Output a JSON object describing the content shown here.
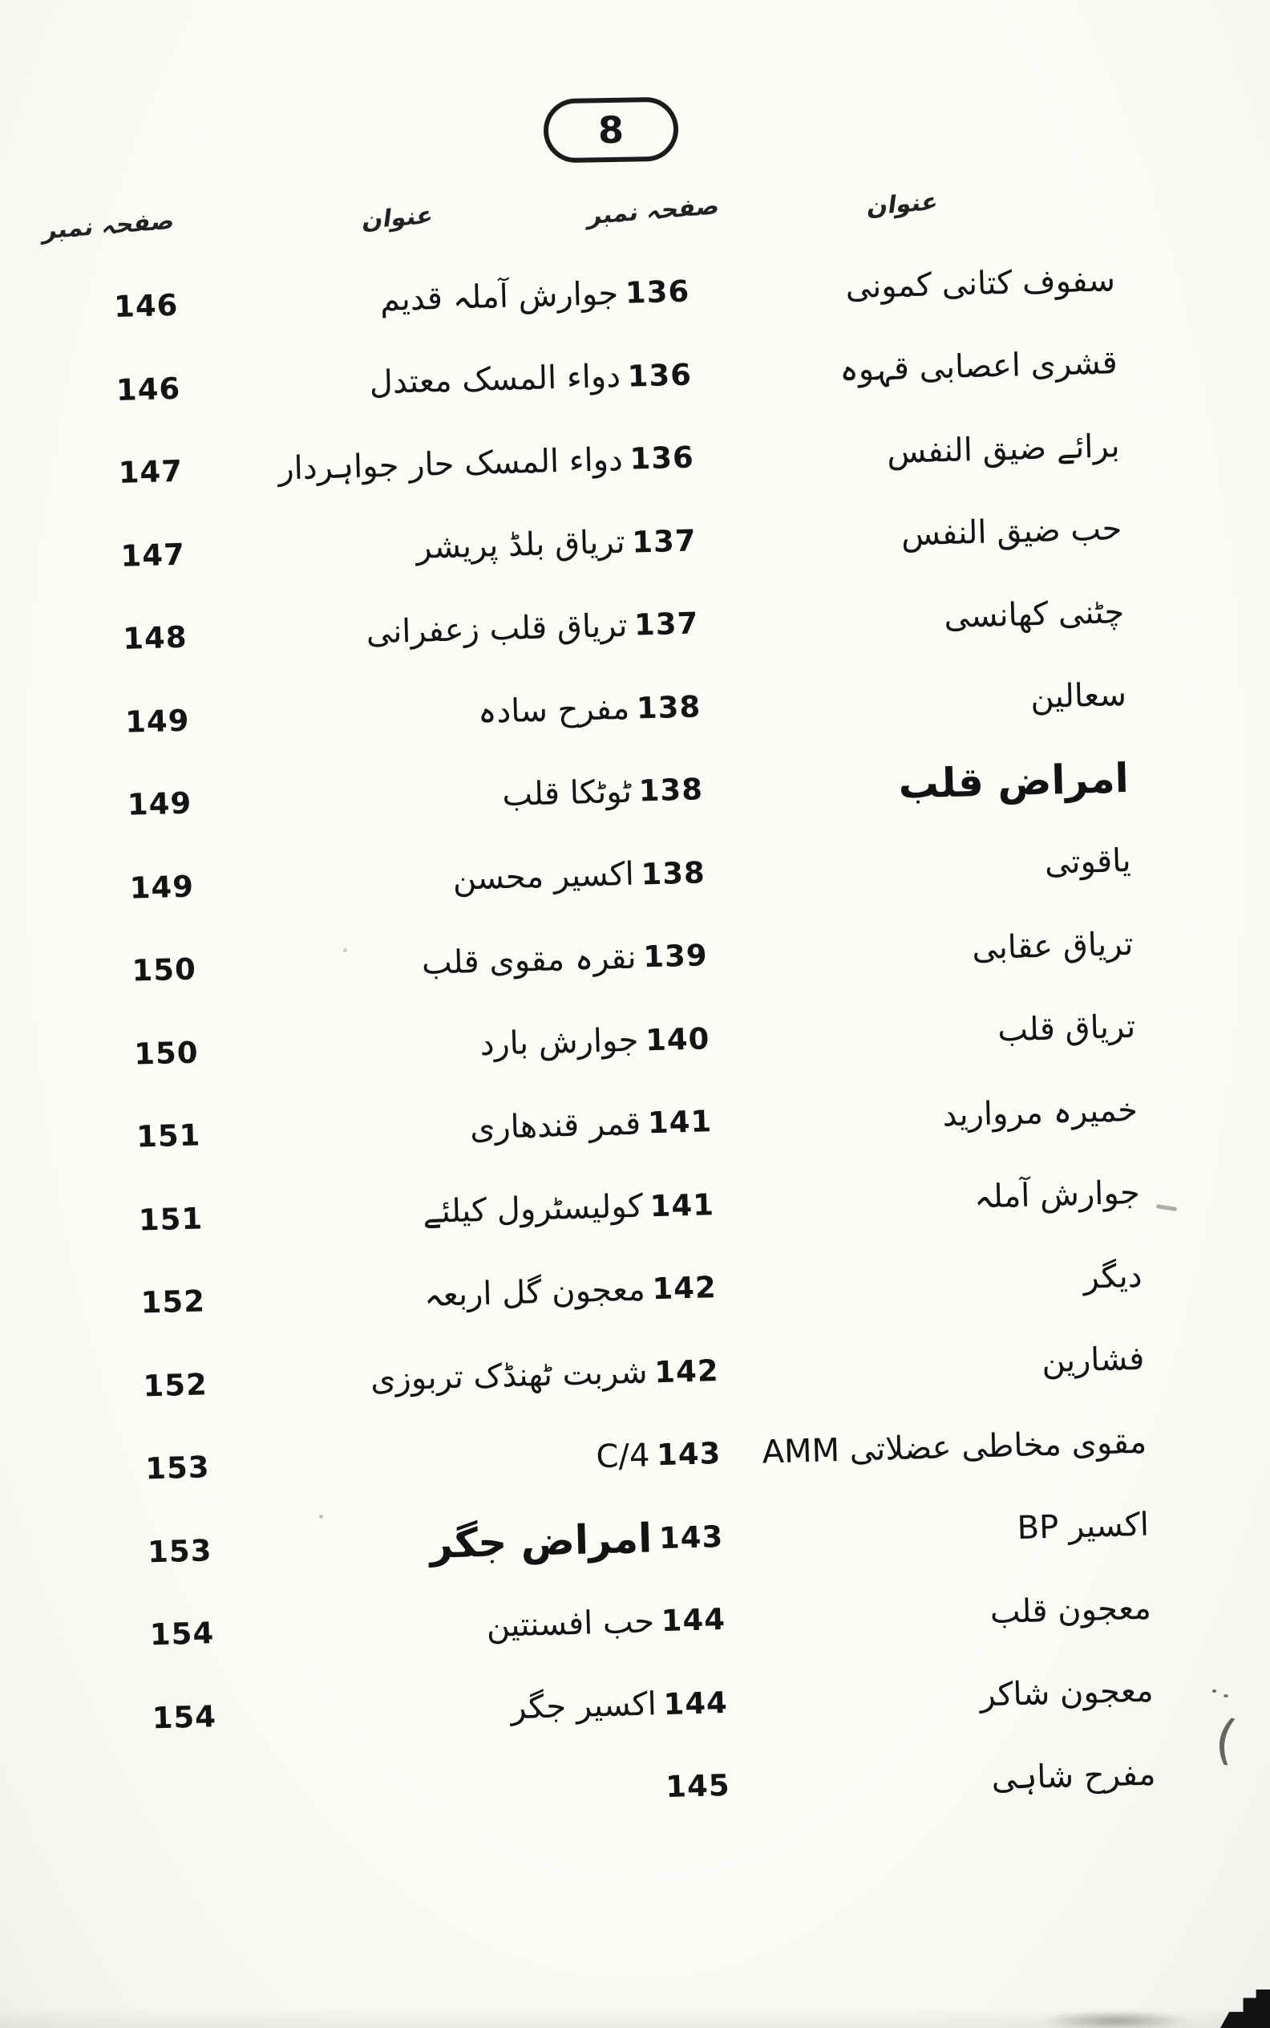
{
  "page_badge": "8",
  "headers": {
    "right_title_col": "عنوان",
    "right_page_col": "صفحہ نمبر",
    "left_title_col": "عنوان",
    "left_page_col": "صفحہ نمبر"
  },
  "rows": [
    {
      "right_title": "سفوف کتانی کمونی",
      "right_page": "136",
      "left_title": "جوارش آملہ قدیم",
      "left_page": "146"
    },
    {
      "right_title": "قشری اعصابی قہوہ",
      "right_page": "136",
      "left_title": "دواء المسک معتدل",
      "left_page": "146"
    },
    {
      "right_title": "برائے ضیق النفس",
      "right_page": "136",
      "left_title": "دواء المسک حار جواہردار",
      "left_page": "147"
    },
    {
      "right_title": "حب ضیق النفس",
      "right_page": "137",
      "left_title": "تریاق بلڈ پریشر",
      "left_page": "147"
    },
    {
      "right_title": "چٹنی کھانسی",
      "right_page": "137",
      "left_title": "تریاق قلب زعفرانی",
      "left_page": "148"
    },
    {
      "right_title": "سعالین",
      "right_page": "138",
      "left_title": "مفرح سادہ",
      "left_page": "149"
    },
    {
      "right_title": "امراض قلب",
      "right_page": "138",
      "left_title": "ٹوٹکا قلب",
      "left_page": "149",
      "right_bold": true
    },
    {
      "right_title": "یاقوتی",
      "right_page": "138",
      "left_title": "اکسیر محسن",
      "left_page": "149"
    },
    {
      "right_title": "تریاق عقابی",
      "right_page": "139",
      "left_title": "نقرہ مقوی قلب",
      "left_page": "150"
    },
    {
      "right_title": "تریاق قلب",
      "right_page": "140",
      "left_title": "جوارش بارد",
      "left_page": "150"
    },
    {
      "right_title": "خمیرہ مروارید",
      "right_page": "141",
      "left_title": "قمر قندھاری",
      "left_page": "151"
    },
    {
      "right_title": "جوارش آملہ",
      "right_page": "141",
      "left_title": "کولیسٹرول کیلئے",
      "left_page": "151"
    },
    {
      "right_title": "دیگر",
      "right_page": "142",
      "left_title": "معجون گل اربعہ",
      "left_page": "152"
    },
    {
      "right_title": "فشارین",
      "right_page": "142",
      "left_title": "شربت ٹھنڈک تربوزی",
      "left_page": "152"
    },
    {
      "right_title": "مقوی مخاطی عضلاتی AMM",
      "right_page": "143",
      "left_title": "C/4",
      "left_page": "153"
    },
    {
      "right_title": "اکسیر BP",
      "right_page": "143",
      "left_title": "امراض جگر",
      "left_page": "153",
      "left_bold": true
    },
    {
      "right_title": "معجون قلب",
      "right_page": "144",
      "left_title": "حب افسنتین",
      "left_page": "154"
    },
    {
      "right_title": "معجون شاکر",
      "right_page": "144",
      "left_title": "اکسیر جگر",
      "left_page": "154"
    },
    {
      "right_title": "مفرح شاہی",
      "right_page": "145",
      "left_title": "",
      "left_page": ""
    }
  ],
  "artifacts": {
    "stray_mark": "("
  },
  "colors": {
    "ink": "#161616",
    "paper": "#fbfaf7"
  }
}
